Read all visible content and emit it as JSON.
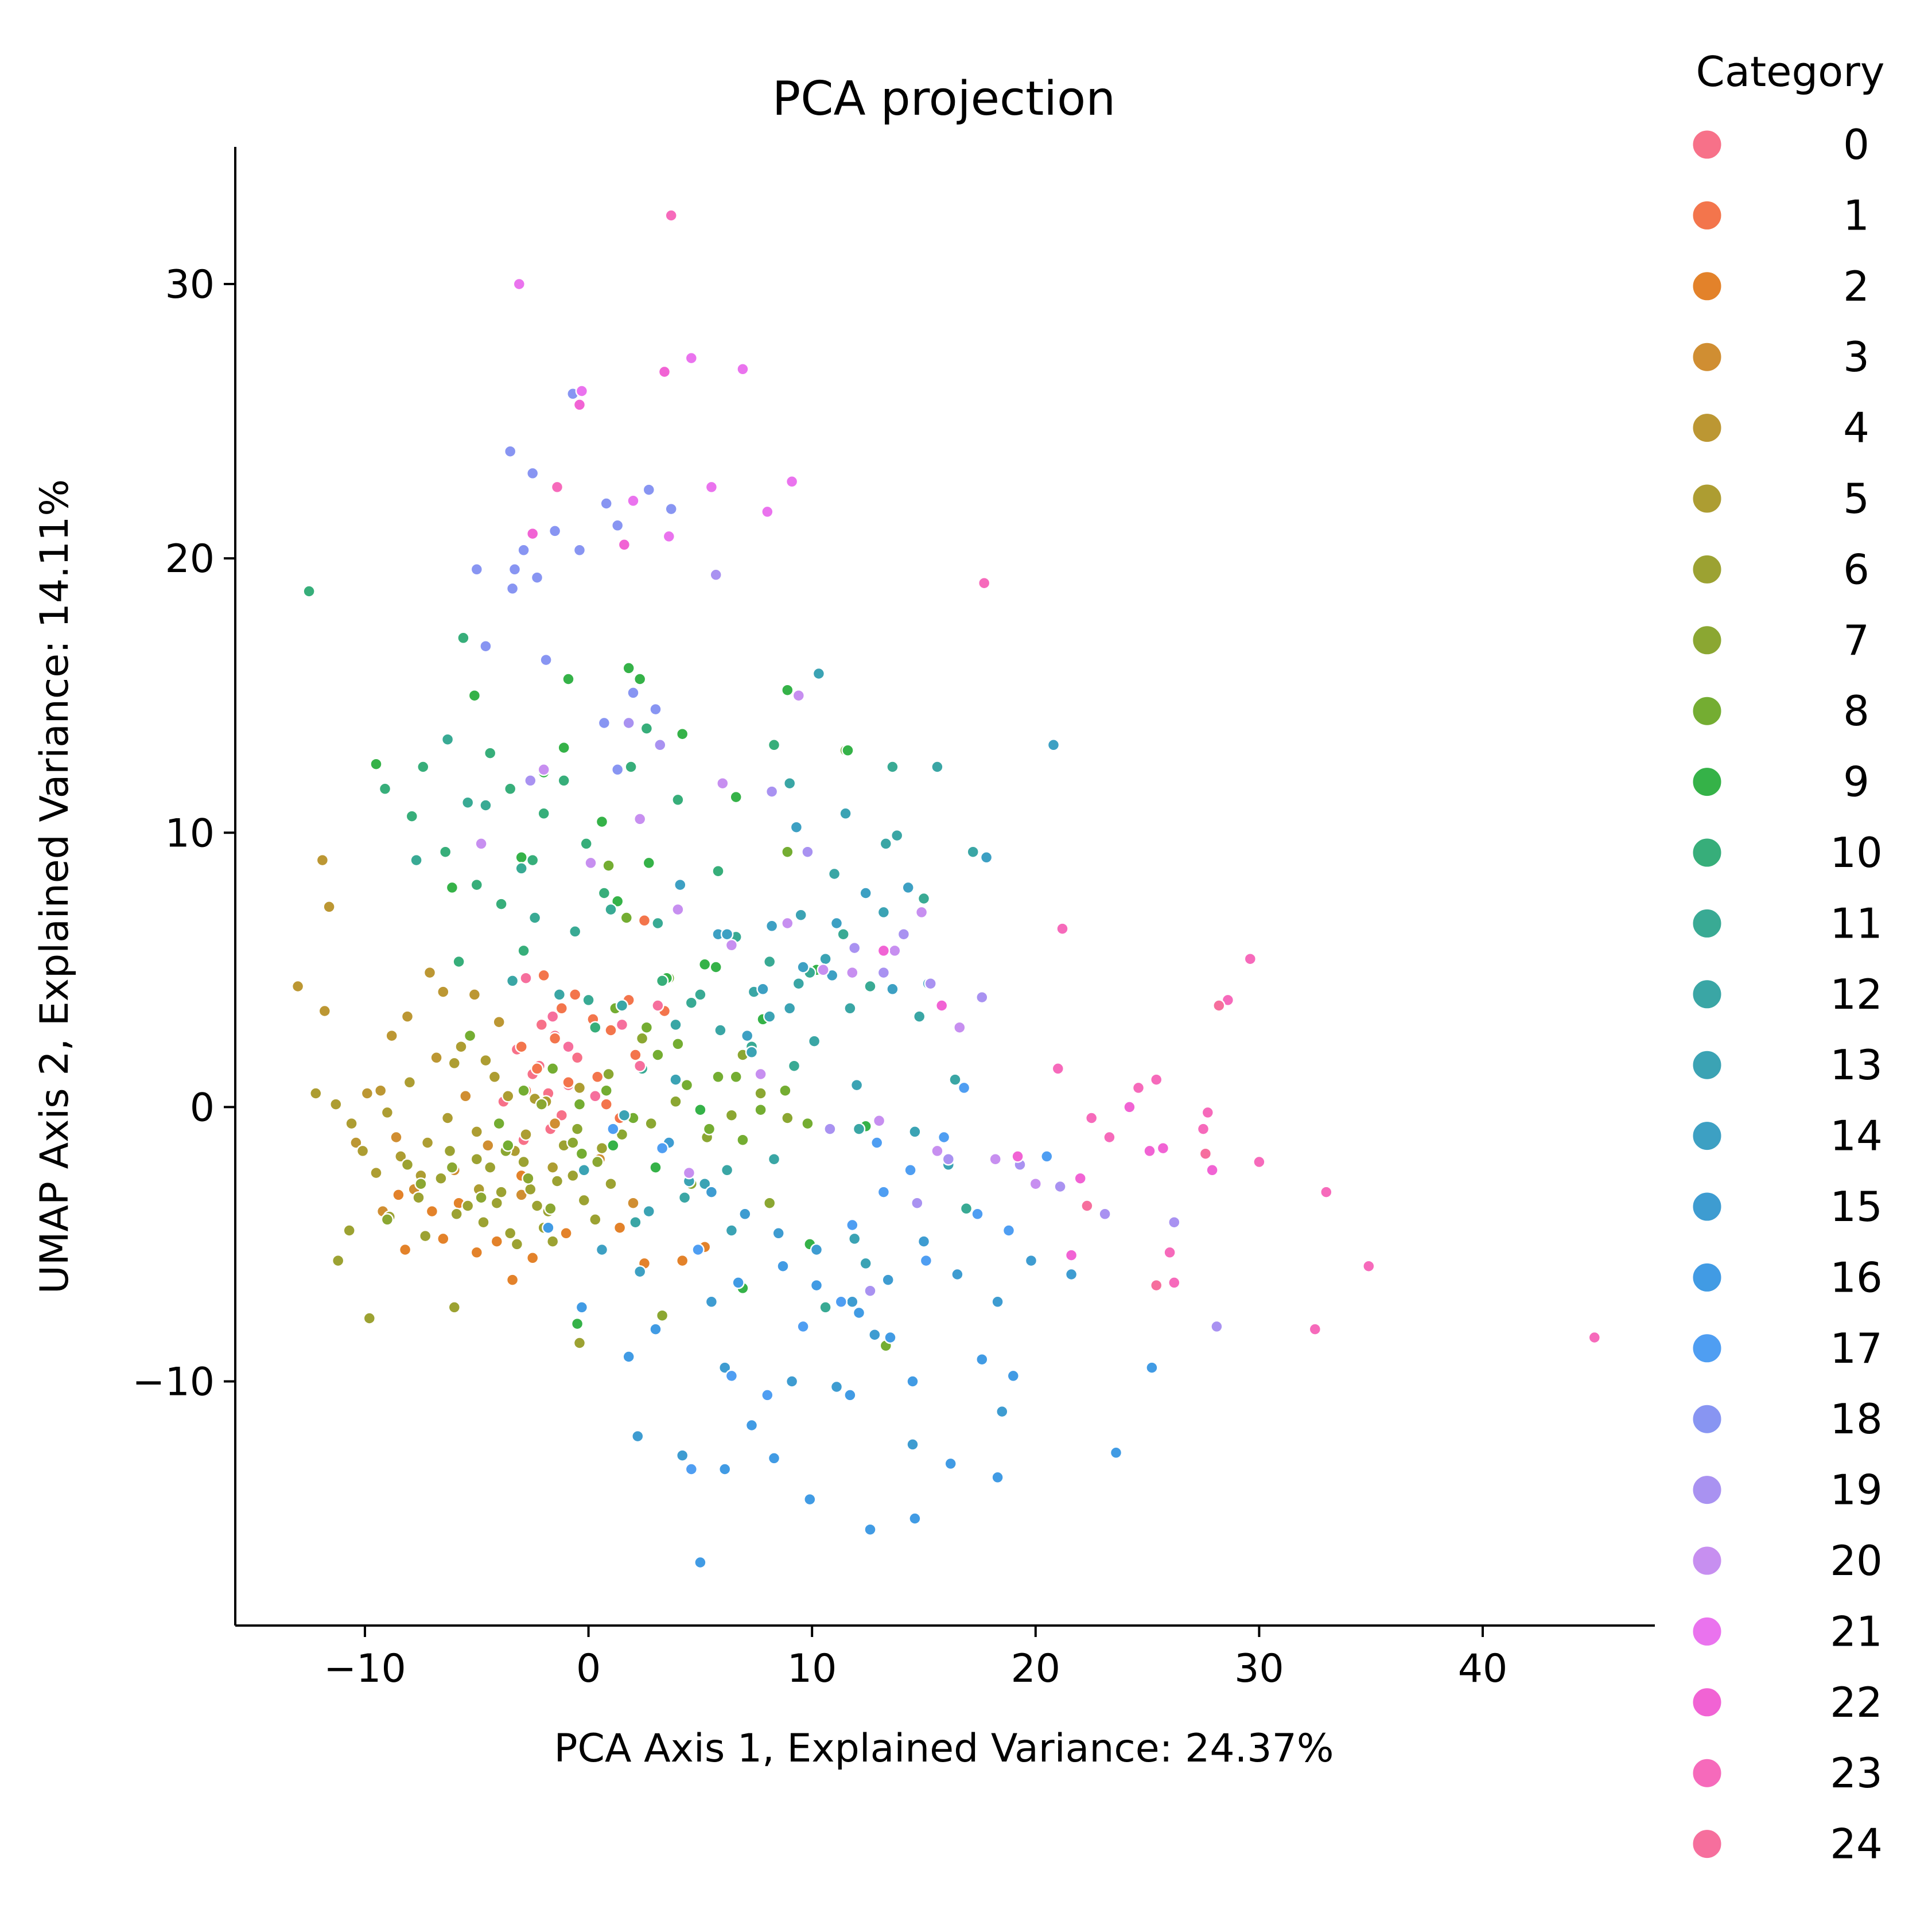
{
  "chart_data": {
    "type": "scatter",
    "title": "PCA projection",
    "xlabel": "PCA Axis 1, Explained Variance: 24.37%",
    "ylabel": "UMAP Axis 2, Explained Variance: 14.11%",
    "xlim": [
      -15.8,
      47.7
    ],
    "ylim": [
      -18.9,
      35
    ],
    "xticks": [
      -10,
      0,
      10,
      20,
      30,
      40
    ],
    "yticks": [
      -10,
      0,
      10,
      20,
      30
    ],
    "xtick_labels": [
      "−10",
      "0",
      "10",
      "20",
      "30",
      "40"
    ],
    "ytick_labels": [
      "−10",
      "0",
      "10",
      "20",
      "30"
    ],
    "grid": false,
    "legend": {
      "title": "Category",
      "placement": "outside-right"
    },
    "series": [
      {
        "name": "0",
        "color": "#f77189",
        "x": [
          -2.5,
          -1.8,
          -3.2,
          -1.2,
          -2.1,
          -0.5,
          -3.8,
          -2.9,
          -1.5,
          -2.2,
          -0.9,
          -1.7
        ],
        "y": [
          1.2,
          0.5,
          2.1,
          -0.3,
          3.0,
          1.8,
          0.2,
          -1.2,
          2.6,
          1.5,
          0.8,
          -0.8
        ]
      },
      {
        "name": "1",
        "color": "#f3754c",
        "x": [
          -1.5,
          0.2,
          -2.3,
          1.0,
          -0.6,
          2.1,
          -2.8,
          0.8,
          -1.2,
          1.8,
          -3.0,
          2.5,
          0.4,
          -0.9,
          3.4,
          -2.0,
          1.4
        ],
        "y": [
          2.5,
          3.2,
          1.4,
          2.8,
          4.1,
          1.9,
          0.6,
          0.1,
          3.6,
          3.9,
          2.2,
          6.8,
          1.1,
          0.9,
          3.5,
          4.8,
          -0.4
        ]
      },
      {
        "name": "2",
        "color": "#e3822a",
        "x": [
          -8.2,
          -6.5,
          -5.0,
          -3.4,
          -2.5,
          -7.0,
          -1.0,
          2.5,
          4.2,
          -5.8,
          -4.1,
          -8.5,
          -3.0,
          1.4,
          5.2
        ],
        "y": [
          -5.2,
          -4.8,
          -5.3,
          -6.3,
          -5.5,
          -3.8,
          -4.6,
          -5.7,
          -5.6,
          -3.5,
          -4.9,
          -3.2,
          -2.5,
          -4.4,
          -5.1
        ]
      },
      {
        "name": "3",
        "color": "#d08e32",
        "x": [
          -9.2,
          -7.8,
          -6.0,
          -4.5,
          -3.0,
          -1.5,
          0.5,
          2.0,
          -5.5,
          -8.6
        ],
        "y": [
          -3.8,
          -3.0,
          -2.3,
          -1.4,
          -3.2,
          -0.6,
          -1.9,
          -3.5,
          0.4,
          -1.1
        ]
      },
      {
        "name": "4",
        "color": "#bc9733",
        "x": [
          -13.0,
          -11.9,
          -11.6,
          -11.8,
          -8.8,
          -9.9,
          -7.1,
          -6.5,
          -5.1,
          -8.1,
          -6.8,
          -4.0,
          -9.3,
          -10.4
        ],
        "y": [
          4.4,
          9.0,
          7.3,
          3.5,
          2.6,
          0.5,
          4.9,
          4.2,
          4.1,
          3.3,
          1.8,
          3.1,
          0.6,
          -1.3
        ]
      },
      {
        "name": "5",
        "color": "#ad9d32",
        "x": [
          -12.2,
          -11.3,
          -10.6,
          -10.1,
          -9.0,
          -8.0,
          -7.2,
          -6.0,
          -5.0,
          -4.2,
          -3.3,
          -2.4,
          -1.6,
          -0.4,
          -7.5,
          -6.3,
          -4.9,
          -3.6,
          -2.8,
          -9.5,
          -8.4,
          -5.7,
          -4.6,
          -1.9
        ],
        "y": [
          0.5,
          0.1,
          -0.6,
          -1.6,
          -0.2,
          0.9,
          -1.3,
          1.6,
          -0.9,
          1.1,
          -1.6,
          0.3,
          -2.2,
          0.7,
          -2.5,
          -0.4,
          -3.0,
          0.4,
          -1.0,
          -2.4,
          -1.8,
          2.2,
          1.7,
          0.2
        ]
      },
      {
        "name": "6",
        "color": "#9ca232",
        "x": [
          -9.8,
          -8.9,
          -7.6,
          -6.6,
          -5.4,
          -4.4,
          -3.5,
          -2.6,
          -1.8,
          -0.7,
          0.3,
          -6.2,
          -5.0,
          -3.9,
          -2.9,
          -2.0,
          -1.1,
          -0.2,
          1.0,
          -7.3,
          -4.7,
          -3.2,
          -2.3,
          -1.4,
          0.6,
          -5.9,
          -4.1,
          -1.6,
          -8.1,
          -11.2,
          -10.7,
          -6.0,
          -0.4
        ],
        "y": [
          -7.7,
          -4.0,
          -3.3,
          -2.6,
          -3.6,
          -2.2,
          -4.6,
          -3.0,
          -3.8,
          -2.5,
          -4.1,
          -1.6,
          -1.9,
          -3.1,
          -2.0,
          -4.4,
          -1.4,
          -3.4,
          -2.8,
          -4.7,
          -4.2,
          -5.0,
          -3.6,
          -2.7,
          -1.5,
          -3.9,
          -3.5,
          -4.9,
          -2.1,
          -5.6,
          -4.5,
          -7.3,
          -8.6
        ]
      },
      {
        "name": "7",
        "color": "#8ba732",
        "x": [
          -9.0,
          -7.5,
          -6.1,
          -4.8,
          -3.7,
          -2.7,
          -1.7,
          -0.7,
          0.4,
          1.5,
          2.8,
          3.9,
          5.3,
          6.4,
          7.7,
          8.9,
          2.4,
          0.9,
          -0.5,
          -2.1,
          4.6,
          6.9,
          8.1,
          3.3
        ],
        "y": [
          -4.1,
          -2.8,
          -2.2,
          -3.3,
          -1.6,
          -2.6,
          -3.7,
          -1.3,
          -2.0,
          -1.0,
          -0.6,
          0.2,
          -1.1,
          -0.3,
          0.5,
          -0.4,
          2.5,
          1.2,
          -0.8,
          0.1,
          -2.8,
          1.9,
          -3.5,
          -7.6
        ]
      },
      {
        "name": "8",
        "color": "#74ad32",
        "x": [
          -4.0,
          -2.9,
          -1.6,
          -0.4,
          0.8,
          2.0,
          3.1,
          4.4,
          5.4,
          6.6,
          7.7,
          8.8,
          9.8,
          1.2,
          2.6,
          4.0,
          5.8,
          3.6,
          6.9,
          -5.3,
          -3.6,
          -0.3,
          11.5,
          13.3,
          8.9,
          0.9,
          1.7
        ],
        "y": [
          -0.6,
          0.6,
          1.4,
          0.1,
          0.6,
          -0.4,
          1.9,
          0.8,
          -0.8,
          1.1,
          -0.1,
          0.6,
          -0.6,
          3.6,
          2.9,
          2.3,
          1.1,
          4.7,
          -1.2,
          2.6,
          -1.4,
          -1.7,
          13.0,
          -8.7,
          9.3,
          8.8,
          6.9
        ]
      },
      {
        "name": "9",
        "color": "#35b248",
        "x": [
          -9.5,
          -5.1,
          -3.0,
          -0.9,
          1.8,
          2.3,
          4.2,
          -2.0,
          0.6,
          2.7,
          5.2,
          6.6,
          8.9,
          10.2,
          11.6,
          -6.1,
          -3.9,
          -1.1,
          1.3,
          3.5,
          5.7,
          7.8,
          12.4,
          6.9,
          9.9,
          -0.5,
          1.1,
          3.0,
          5.0
        ],
        "y": [
          12.5,
          15.0,
          9.1,
          15.6,
          16.0,
          15.6,
          13.6,
          12.2,
          10.4,
          8.9,
          5.2,
          11.3,
          15.2,
          5.0,
          13.0,
          8.0,
          7.4,
          13.1,
          7.5,
          4.7,
          5.1,
          3.2,
          -0.7,
          -6.6,
          -5.0,
          -7.9,
          -1.4,
          -2.2,
          -0.1
        ]
      },
      {
        "name": "10",
        "color": "#37ae7a",
        "x": [
          -12.5,
          -5.6,
          -4.4,
          -7.4,
          -3.5,
          -2.0,
          -0.1,
          1.9,
          -7.9,
          -6.4,
          -5.0,
          -3.9,
          -2.5,
          -1.1,
          0.7,
          2.6,
          4.0,
          5.8,
          8.3,
          3.3,
          -9.1,
          -5.8,
          -2.9,
          0.3
        ],
        "y": [
          18.8,
          17.1,
          12.9,
          12.4,
          11.6,
          10.7,
          9.6,
          12.4,
          10.6,
          9.3,
          8.1,
          7.4,
          9.0,
          11.9,
          7.8,
          13.8,
          11.2,
          8.6,
          13.2,
          4.6,
          11.6,
          5.3,
          5.7,
          2.9
        ]
      },
      {
        "name": "11",
        "color": "#39aa94",
        "x": [
          -6.3,
          -7.7,
          -4.6,
          -3.0,
          -0.6,
          1.0,
          3.1,
          5.0,
          6.6,
          8.1,
          9.9,
          11.4,
          -5.4,
          -2.4,
          0.0,
          2.4,
          4.6,
          7.3,
          9.2,
          13.6,
          15.0,
          12.6,
          16.9,
          10.6
        ],
        "y": [
          13.4,
          9.0,
          11.0,
          8.7,
          6.4,
          7.2,
          6.7,
          4.1,
          6.2,
          5.3,
          4.9,
          6.3,
          11.1,
          6.9,
          3.9,
          1.4,
          3.8,
          2.2,
          1.5,
          12.4,
          7.6,
          4.4,
          -3.7,
          -7.3
        ]
      },
      {
        "name": "12",
        "color": "#3aa6a5",
        "x": [
          -3.4,
          -1.3,
          1.5,
          3.9,
          5.9,
          7.4,
          9.4,
          11.7,
          13.3,
          15.6,
          14.8,
          10.1,
          12.1,
          8.3,
          6.2,
          4.3,
          2.1,
          16.4,
          17.2,
          13.8,
          11.0,
          9.0
        ],
        "y": [
          4.6,
          4.1,
          3.7,
          3.0,
          2.8,
          4.2,
          4.5,
          3.6,
          9.6,
          12.4,
          3.3,
          2.4,
          -0.8,
          -1.9,
          -2.3,
          -3.3,
          -4.2,
          1.0,
          9.3,
          9.9,
          8.5,
          11.8
        ]
      },
      {
        "name": "13",
        "color": "#3ba3b4",
        "x": [
          -0.2,
          1.6,
          3.9,
          5.2,
          7.3,
          9.0,
          10.6,
          12.0,
          14.6,
          16.1,
          10.3,
          11.5,
          13.2,
          8.1,
          6.4,
          4.5,
          2.7,
          9.5,
          11.9,
          12.4
        ],
        "y": [
          -2.3,
          -0.3,
          1.0,
          -2.8,
          2.0,
          3.6,
          5.4,
          0.8,
          -0.9,
          -2.1,
          15.8,
          10.7,
          7.1,
          3.3,
          -4.5,
          -2.7,
          -3.8,
          7.0,
          -4.8,
          -5.7
        ]
      },
      {
        "name": "14",
        "color": "#3da0c3",
        "x": [
          5.8,
          8.2,
          9.6,
          4.1,
          6.2,
          7.8,
          10.9,
          12.4,
          14.3,
          17.8,
          20.8,
          9.3,
          11.1,
          13.6,
          15.2,
          7.1,
          2.3,
          0.6
        ],
        "y": [
          6.3,
          6.6,
          5.1,
          8.1,
          6.3,
          4.3,
          4.8,
          7.8,
          8.0,
          9.1,
          13.2,
          10.2,
          6.7,
          4.3,
          4.5,
          2.6,
          -6.0,
          -5.2
        ]
      },
      {
        "name": "15",
        "color": "#3e9cd1",
        "x": [
          3.6,
          5.5,
          7.0,
          8.5,
          10.2,
          11.8,
          13.4,
          15.0,
          16.5,
          18.3,
          19.8,
          21.6,
          9.1,
          11.1,
          12.8,
          14.5,
          6.1,
          4.2,
          2.2,
          5.5,
          18.5
        ],
        "y": [
          -1.3,
          -3.1,
          -3.9,
          -4.6,
          -5.2,
          -7.1,
          -6.3,
          -4.9,
          -6.1,
          -7.1,
          -5.6,
          -6.1,
          -10.0,
          -10.2,
          -8.3,
          -12.3,
          -9.5,
          -12.7,
          -12.0,
          -7.1,
          -11.1
        ]
      },
      {
        "name": "16",
        "color": "#419be4",
        "x": [
          5.0,
          6.1,
          7.3,
          8.3,
          9.9,
          11.7,
          12.6,
          13.5,
          14.6,
          16.2,
          17.6,
          19.0,
          23.6,
          25.2,
          18.3,
          14.5,
          12.1,
          10.2,
          8.7,
          6.7,
          3.0,
          1.8,
          -0.3,
          -1.8
        ],
        "y": [
          -16.6,
          -13.2,
          -11.6,
          -12.8,
          -14.3,
          -10.5,
          -15.4,
          -8.4,
          -15.0,
          -13.0,
          -9.2,
          -9.8,
          -12.6,
          -9.5,
          -13.5,
          -10.0,
          -7.5,
          -6.5,
          -5.8,
          -6.4,
          -8.1,
          -9.1,
          -7.3,
          -4.4
        ]
      },
      {
        "name": "17",
        "color": "#4f9ef2",
        "x": [
          4.6,
          6.4,
          8.0,
          9.6,
          11.3,
          12.9,
          14.4,
          15.9,
          17.4,
          18.8,
          20.5,
          16.8,
          15.1,
          13.2,
          11.8,
          3.3,
          1.1,
          4.9
        ],
        "y": [
          -13.2,
          -9.8,
          -10.5,
          -8.0,
          -7.1,
          -1.3,
          -2.3,
          -1.1,
          -3.9,
          -4.5,
          -1.8,
          0.7,
          -5.6,
          -3.1,
          -4.3,
          -1.5,
          -0.8,
          -5.2
        ]
      },
      {
        "name": "18",
        "color": "#8895f2",
        "x": [
          -3.5,
          -2.5,
          -1.5,
          -3.3,
          -2.9,
          -4.6,
          -1.9,
          -0.7,
          0.8,
          1.3,
          2.7,
          3.7,
          -3.4,
          -5.0,
          -2.3,
          -0.4,
          2.0,
          3.0,
          1.3,
          0.7
        ],
        "y": [
          23.9,
          23.1,
          21.0,
          19.6,
          20.3,
          16.8,
          16.3,
          26.0,
          22.0,
          21.2,
          22.5,
          21.8,
          18.9,
          19.6,
          19.3,
          20.3,
          15.1,
          14.5,
          12.3,
          14.0
        ]
      },
      {
        "name": "19",
        "color": "#a992f1",
        "x": [
          -2.6,
          1.8,
          3.2,
          5.7,
          8.2,
          9.8,
          11.9,
          13.2,
          14.1,
          15.3,
          17.6,
          19.3,
          21.1,
          23.1,
          26.2,
          28.1,
          16.1,
          14.7,
          12.6,
          10.8
        ],
        "y": [
          11.9,
          14.0,
          13.2,
          19.4,
          11.5,
          9.3,
          5.8,
          4.9,
          6.3,
          4.5,
          4.0,
          -2.1,
          -2.9,
          -3.9,
          -4.2,
          -8.0,
          -1.9,
          -3.5,
          -6.7,
          -0.8
        ]
      },
      {
        "name": "20",
        "color": "#c78ff0",
        "x": [
          -4.8,
          -2.0,
          0.1,
          2.3,
          4.0,
          6.4,
          8.9,
          10.5,
          13.7,
          14.9,
          16.6,
          18.2,
          20.0,
          9.4,
          11.8,
          6.0,
          7.7,
          13.0,
          15.6,
          4.5
        ],
        "y": [
          9.6,
          12.3,
          8.9,
          10.5,
          7.2,
          5.9,
          6.7,
          5.0,
          5.7,
          7.1,
          2.9,
          -1.9,
          -2.8,
          15.0,
          4.9,
          11.8,
          1.2,
          -0.5,
          -1.6,
          -2.4
        ]
      },
      {
        "name": "21",
        "color": "#ea73ee",
        "x": [
          -3.1,
          -0.3,
          2.0,
          3.6,
          5.5,
          8.0,
          4.6,
          9.1,
          6.9
        ],
        "y": [
          30.0,
          26.1,
          22.1,
          20.8,
          22.6,
          21.7,
          27.3,
          22.8,
          26.9
        ]
      },
      {
        "name": "22",
        "color": "#f163d4",
        "x": [
          -2.5,
          -0.4,
          3.4,
          1.6,
          13.2,
          15.8,
          22.0,
          24.2,
          25.7,
          27.9,
          19.2,
          21.6,
          25.1
        ],
        "y": [
          20.9,
          25.6,
          26.8,
          20.5,
          5.7,
          3.7,
          -2.6,
          0.0,
          -1.5,
          -2.3,
          -1.8,
          -5.4,
          -1.6
        ]
      },
      {
        "name": "23",
        "color": "#f66abb",
        "x": [
          3.7,
          -1.4,
          17.7,
          21.2,
          22.5,
          24.6,
          25.4,
          26.0,
          27.7,
          28.6,
          29.6,
          30.0,
          32.5,
          33.0,
          34.9,
          45.0,
          27.5,
          23.3,
          21.0,
          26.2
        ],
        "y": [
          32.5,
          22.6,
          19.1,
          6.5,
          -0.4,
          0.7,
          1.0,
          -5.3,
          -0.2,
          3.9,
          5.4,
          -2.0,
          -8.1,
          -3.1,
          -5.8,
          -8.4,
          -0.8,
          -1.1,
          1.4,
          -6.4
        ]
      },
      {
        "name": "24",
        "color": "#f66f9d",
        "x": [
          -2.8,
          -1.6,
          -0.9,
          0.3,
          1.5,
          2.3,
          3.1,
          22.3,
          27.6,
          28.2,
          25.4
        ],
        "y": [
          4.7,
          3.3,
          2.2,
          0.4,
          3.0,
          1.5,
          3.7,
          -3.6,
          -1.7,
          3.7,
          -6.5
        ]
      }
    ]
  }
}
